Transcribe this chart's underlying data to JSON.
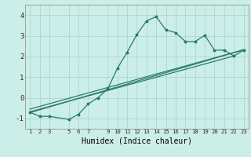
{
  "xlabel": "Humidex (Indice chaleur)",
  "bg_color": "#cceee8",
  "grid_color": "#aad8d0",
  "line_color": "#2a7a68",
  "x_data": [
    1,
    2,
    3,
    5,
    6,
    7,
    8,
    9,
    10,
    11,
    12,
    13,
    14,
    15,
    16,
    17,
    18,
    19,
    20,
    21,
    22,
    23
  ],
  "y_main": [
    -0.7,
    -0.9,
    -0.9,
    -1.05,
    -0.8,
    -0.3,
    0.0,
    0.42,
    1.42,
    2.2,
    3.05,
    3.72,
    3.92,
    3.28,
    3.15,
    2.72,
    2.72,
    3.02,
    2.3,
    2.3,
    2.02,
    2.3
  ],
  "line1_x": [
    1,
    23
  ],
  "line1_y": [
    -0.55,
    2.32
  ],
  "line2_x": [
    1,
    22
  ],
  "line2_y": [
    -0.68,
    2.02
  ],
  "line3_x": [
    1,
    23
  ],
  "line3_y": [
    -0.72,
    2.32
  ],
  "xlim": [
    0.5,
    23.5
  ],
  "ylim": [
    -1.5,
    4.5
  ],
  "yticks": [
    -1,
    0,
    1,
    2,
    3,
    4
  ],
  "xticks": [
    1,
    2,
    3,
    5,
    6,
    7,
    9,
    10,
    11,
    12,
    13,
    14,
    15,
    16,
    17,
    18,
    19,
    20,
    21,
    22,
    23
  ]
}
